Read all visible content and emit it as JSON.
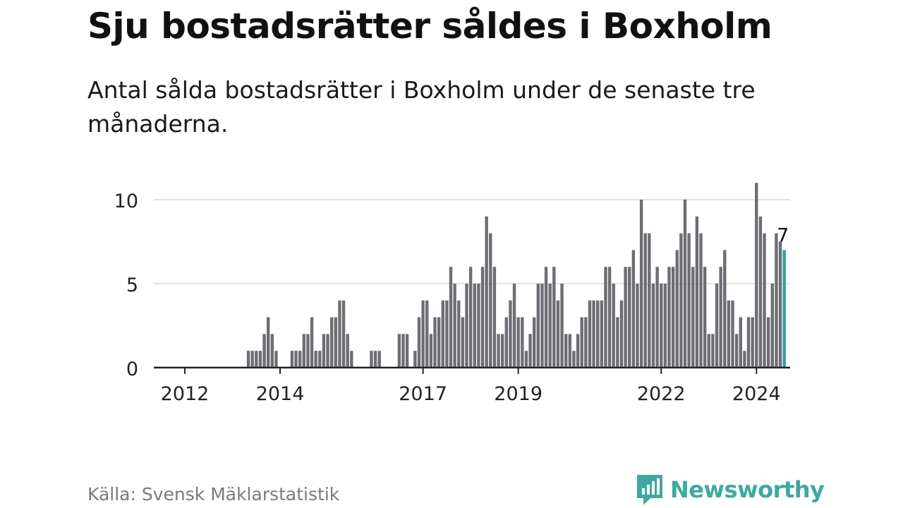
{
  "header": {
    "title": "Sju bostadsrätter såldes i Boxholm",
    "subtitle": "Antal sålda bostadsrätter i Boxholm under de senaste tre månaderna."
  },
  "footer": {
    "source": "Källa: Svensk Mäklarstatistik",
    "brand": "Newsworthy"
  },
  "colors": {
    "bar": "#6e6d73",
    "highlight": "#2aa3a0",
    "grid": "#d9d9d9",
    "axis": "#222222",
    "brand": "#3fa8a0"
  },
  "chart_data": {
    "type": "bar",
    "title": "Sju bostadsrätter såldes i Boxholm",
    "xlabel": "",
    "ylabel": "",
    "ylim": [
      0,
      11
    ],
    "yticks": [
      0,
      5,
      10
    ],
    "xticks": [
      {
        "label": "2012",
        "index": 0
      },
      {
        "label": "2014",
        "index": 24
      },
      {
        "label": "2017",
        "index": 60
      },
      {
        "label": "2019",
        "index": 84
      },
      {
        "label": "2022",
        "index": 120
      },
      {
        "label": "2024",
        "index": 144
      }
    ],
    "start": "2012-01",
    "values": [
      0,
      0,
      0,
      0,
      0,
      0,
      0,
      0,
      0,
      0,
      0,
      0,
      0,
      0,
      0,
      0,
      1,
      1,
      1,
      1,
      2,
      3,
      2,
      1,
      0,
      0,
      0,
      1,
      1,
      1,
      2,
      2,
      3,
      1,
      1,
      2,
      2,
      3,
      3,
      4,
      4,
      2,
      1,
      0,
      0,
      0,
      0,
      1,
      1,
      1,
      0,
      0,
      0,
      0,
      2,
      2,
      2,
      0,
      1,
      3,
      4,
      4,
      2,
      3,
      3,
      4,
      4,
      6,
      5,
      4,
      3,
      5,
      6,
      5,
      5,
      6,
      9,
      8,
      6,
      2,
      2,
      3,
      4,
      5,
      3,
      3,
      1,
      2,
      3,
      5,
      5,
      6,
      5,
      6,
      4,
      5,
      2,
      2,
      1,
      2,
      3,
      3,
      4,
      4,
      4,
      4,
      6,
      6,
      5,
      3,
      4,
      6,
      6,
      7,
      5,
      10,
      8,
      8,
      5,
      6,
      5,
      5,
      6,
      6,
      7,
      8,
      10,
      8,
      6,
      9,
      8,
      6,
      2,
      2,
      5,
      6,
      7,
      4,
      4,
      2,
      3,
      1,
      3,
      3,
      11,
      9,
      8,
      3,
      5,
      8,
      7.5,
      7
    ],
    "highlight_index": 151,
    "annotation": {
      "index": 151,
      "label": "7"
    }
  }
}
